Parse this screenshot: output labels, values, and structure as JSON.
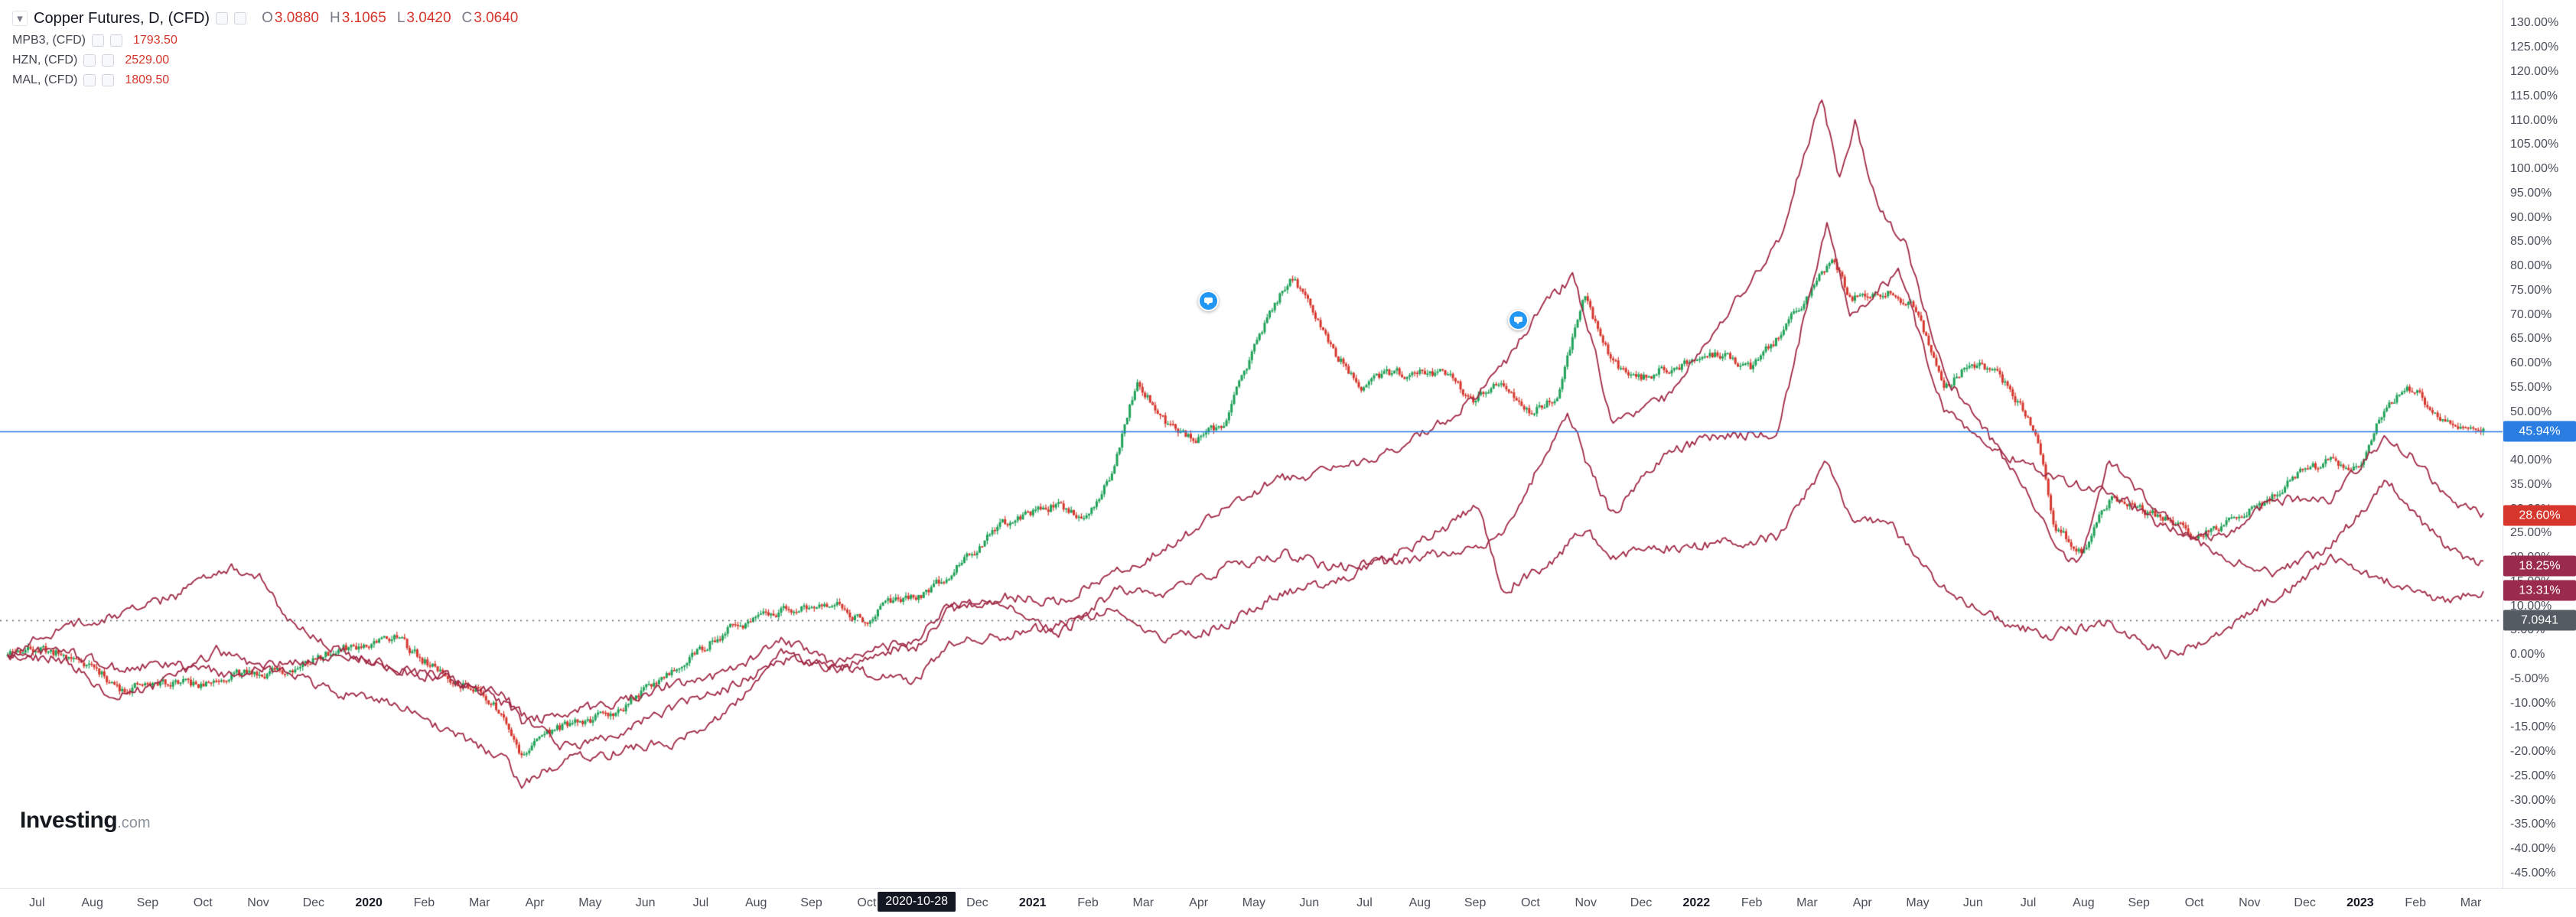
{
  "branding": {
    "name": "Investing",
    "suffix": ".com"
  },
  "legend": {
    "collapse_icon": "▾",
    "title": "Copper Futures, D, (CFD)",
    "ohlc": {
      "o_label": "O",
      "o": "3.0880",
      "h_label": "H",
      "h": "3.1065",
      "l_label": "L",
      "l": "3.0420",
      "c_label": "C",
      "c": "3.0640"
    },
    "compares": [
      {
        "symbol": "MPB3, (CFD)",
        "value": "1793.50"
      },
      {
        "symbol": "HZN, (CFD)",
        "value": "2529.00"
      },
      {
        "symbol": "MAL, (CFD)",
        "value": "1809.50"
      }
    ]
  },
  "crosshair_date": "2020-10-28",
  "price_tags": [
    {
      "label": "45.94%",
      "value": 45.94,
      "bg": "#2a7de1"
    },
    {
      "label": "28.60%",
      "value": 28.6,
      "bg": "#d6362c"
    },
    {
      "label": "18.25%",
      "value": 18.25,
      "bg": "#9a2b4c"
    },
    {
      "label": "13.31%",
      "value": 13.31,
      "bg": "#9a2b4c"
    },
    {
      "label": "7.0941",
      "value": 7.0941,
      "bg": "#555b63"
    }
  ],
  "chart_data": {
    "type": "candlestick+line",
    "title": "Copper Futures, D, (CFD) with MPB3, HZN, MAL overlays (percent change scale)",
    "x_unit": "months since 2019-06-15",
    "y_axis": {
      "min": -48,
      "max": 134.8,
      "tick_step": 5,
      "unit": "%"
    },
    "x_axis": {
      "epoch": "2019-06-15",
      "start": "2019-07",
      "end": "2023-03",
      "month_names": [
        "Jan",
        "Feb",
        "Mar",
        "Apr",
        "May",
        "Jun",
        "Jul",
        "Aug",
        "Sep",
        "Oct",
        "Nov",
        "Dec"
      ]
    },
    "colors": {
      "up": "#1fa158",
      "down": "#d6362c",
      "compare": "#a02945",
      "current_line": "#2a7de1",
      "level_line": "#5c6066"
    },
    "levels": [
      {
        "value": 45.94,
        "style": "solid"
      },
      {
        "value": 7.0941,
        "style": "dotted"
      }
    ],
    "markers": [
      {
        "t": 21.7,
        "value": 73
      },
      {
        "t": 27.3,
        "value": 69
      }
    ],
    "series": [
      {
        "name": "Copper Futures (CFD)",
        "type": "candlestick",
        "last_label": "45.94%",
        "points": [
          [
            0,
            0
          ],
          [
            0.5,
            1.5
          ],
          [
            1,
            0
          ],
          [
            1.5,
            -2
          ],
          [
            2,
            -7
          ],
          [
            3,
            -5.5
          ],
          [
            3.5,
            -6.5
          ],
          [
            4,
            -4
          ],
          [
            5,
            -3.5
          ],
          [
            5.5,
            -1
          ],
          [
            6,
            1
          ],
          [
            7,
            4
          ],
          [
            7.5,
            -1
          ],
          [
            8,
            -5
          ],
          [
            8.5,
            -7
          ],
          [
            9,
            -13
          ],
          [
            9.3,
            -21
          ],
          [
            9.7,
            -16
          ],
          [
            10,
            -15
          ],
          [
            11,
            -12
          ],
          [
            12,
            -3
          ],
          [
            13,
            5
          ],
          [
            14,
            9
          ],
          [
            15,
            10
          ],
          [
            15.5,
            7
          ],
          [
            16,
            11
          ],
          [
            16.4,
            11.6
          ],
          [
            17,
            16
          ],
          [
            18,
            27
          ],
          [
            19,
            31
          ],
          [
            19.5,
            28
          ],
          [
            20,
            38
          ],
          [
            20.4,
            56
          ],
          [
            21,
            47
          ],
          [
            21.5,
            44
          ],
          [
            22,
            48
          ],
          [
            22.8,
            70
          ],
          [
            23.2,
            78
          ],
          [
            23.5,
            73
          ],
          [
            24,
            62
          ],
          [
            24.5,
            55
          ],
          [
            25,
            58
          ],
          [
            26,
            58
          ],
          [
            26.5,
            52
          ],
          [
            27,
            57
          ],
          [
            27.5,
            50
          ],
          [
            28,
            53
          ],
          [
            28.5,
            74
          ],
          [
            29,
            60
          ],
          [
            29.5,
            57
          ],
          [
            30,
            59
          ],
          [
            31,
            62
          ],
          [
            31.5,
            59
          ],
          [
            32,
            65
          ],
          [
            33,
            82
          ],
          [
            33.3,
            73
          ],
          [
            34,
            75
          ],
          [
            34.5,
            71
          ],
          [
            35,
            55
          ],
          [
            35.5,
            60
          ],
          [
            36,
            58
          ],
          [
            36.7,
            45
          ],
          [
            37,
            27
          ],
          [
            37.5,
            21
          ],
          [
            38,
            32
          ],
          [
            39,
            28
          ],
          [
            39.5,
            25
          ],
          [
            40,
            26
          ],
          [
            41,
            33
          ],
          [
            41.5,
            38
          ],
          [
            42,
            40
          ],
          [
            42.5,
            38
          ],
          [
            43,
            52
          ],
          [
            43.5,
            55
          ],
          [
            44,
            48
          ],
          [
            44.8,
            45.94
          ]
        ]
      },
      {
        "name": "MAL, (CFD)",
        "type": "line",
        "last_label": "28.60%",
        "points": [
          [
            0,
            0
          ],
          [
            1,
            1
          ],
          [
            2,
            -3
          ],
          [
            3,
            -2
          ],
          [
            4,
            -4
          ],
          [
            5,
            -2
          ],
          [
            6,
            0
          ],
          [
            7,
            -2.5
          ],
          [
            8,
            -5
          ],
          [
            9,
            -10
          ],
          [
            9.5,
            -14
          ],
          [
            10,
            -18.5
          ],
          [
            10.3,
            -19
          ],
          [
            11,
            -16
          ],
          [
            12,
            -11
          ],
          [
            13,
            -7
          ],
          [
            14,
            -1
          ],
          [
            15,
            -2
          ],
          [
            16,
            2
          ],
          [
            16.4,
            1
          ],
          [
            17,
            9
          ],
          [
            18,
            12
          ],
          [
            19,
            11
          ],
          [
            20,
            17
          ],
          [
            21,
            22
          ],
          [
            22,
            31
          ],
          [
            23,
            36
          ],
          [
            24,
            38
          ],
          [
            25,
            42
          ],
          [
            26,
            48
          ],
          [
            27,
            59
          ],
          [
            27.8,
            72
          ],
          [
            28.3,
            78
          ],
          [
            28.7,
            62
          ],
          [
            29,
            48
          ],
          [
            30,
            53
          ],
          [
            31,
            69
          ],
          [
            32,
            85
          ],
          [
            32.8,
            115
          ],
          [
            33.1,
            98
          ],
          [
            33.4,
            110
          ],
          [
            33.8,
            92
          ],
          [
            34.3,
            85
          ],
          [
            35,
            58
          ],
          [
            36,
            42
          ],
          [
            37,
            36
          ],
          [
            38,
            34
          ],
          [
            39,
            26
          ],
          [
            40,
            24
          ],
          [
            41,
            32
          ],
          [
            42,
            32
          ],
          [
            43,
            45
          ],
          [
            43.6,
            40
          ],
          [
            44,
            33
          ],
          [
            44.8,
            28.6
          ]
        ]
      },
      {
        "name": "HZN, (CFD)",
        "type": "line",
        "last_label": "18.25%",
        "points": [
          [
            0,
            0
          ],
          [
            1,
            -1
          ],
          [
            2,
            -9
          ],
          [
            3,
            -5
          ],
          [
            3.8,
            1
          ],
          [
            4.5,
            -2
          ],
          [
            5,
            -4
          ],
          [
            6,
            -8
          ],
          [
            7,
            -10
          ],
          [
            8,
            -16
          ],
          [
            9,
            -22
          ],
          [
            9.3,
            -27
          ],
          [
            10,
            -22
          ],
          [
            11,
            -20
          ],
          [
            12,
            -18
          ],
          [
            13,
            -12
          ],
          [
            14,
            0
          ],
          [
            15,
            -3
          ],
          [
            16,
            1
          ],
          [
            16.4,
            2
          ],
          [
            17,
            11
          ],
          [
            18,
            11
          ],
          [
            19,
            4
          ],
          [
            20,
            13
          ],
          [
            21,
            13
          ],
          [
            22,
            18
          ],
          [
            23,
            21
          ],
          [
            24,
            18
          ],
          [
            25,
            19
          ],
          [
            26,
            21
          ],
          [
            27,
            24
          ],
          [
            28.2,
            50
          ],
          [
            28.6,
            38
          ],
          [
            29,
            29
          ],
          [
            30,
            42
          ],
          [
            31,
            45
          ],
          [
            32,
            46
          ],
          [
            32.9,
            90
          ],
          [
            33.3,
            70
          ],
          [
            34.2,
            79
          ],
          [
            35,
            50
          ],
          [
            36,
            42
          ],
          [
            37,
            24
          ],
          [
            37.4,
            18
          ],
          [
            38,
            40
          ],
          [
            39,
            28
          ],
          [
            40,
            20
          ],
          [
            41,
            17
          ],
          [
            42,
            22
          ],
          [
            43,
            36
          ],
          [
            44,
            23
          ],
          [
            44.8,
            18.25
          ]
        ]
      },
      {
        "name": "MPB3, (CFD)",
        "type": "line",
        "last_label": "13.31%",
        "points": [
          [
            0,
            0
          ],
          [
            1,
            6
          ],
          [
            2,
            8
          ],
          [
            3,
            12
          ],
          [
            4,
            18
          ],
          [
            4.6,
            16
          ],
          [
            5,
            8
          ],
          [
            6,
            1
          ],
          [
            7,
            -3
          ],
          [
            8,
            -5
          ],
          [
            9,
            -8
          ],
          [
            9.3,
            -14
          ],
          [
            10,
            -12
          ],
          [
            11,
            -10
          ],
          [
            12,
            -6
          ],
          [
            13,
            -4
          ],
          [
            14,
            3
          ],
          [
            15,
            -2
          ],
          [
            16,
            -5
          ],
          [
            16.4,
            -5.4
          ],
          [
            17,
            2
          ],
          [
            18,
            4
          ],
          [
            19,
            6
          ],
          [
            20,
            10
          ],
          [
            21,
            3
          ],
          [
            22,
            6
          ],
          [
            23,
            13
          ],
          [
            24,
            15
          ],
          [
            25,
            20
          ],
          [
            26,
            26
          ],
          [
            26.6,
            31
          ],
          [
            27,
            13
          ],
          [
            28,
            20
          ],
          [
            28.5,
            26
          ],
          [
            29,
            20
          ],
          [
            30,
            22
          ],
          [
            31,
            23
          ],
          [
            32,
            24
          ],
          [
            32.9,
            40
          ],
          [
            33.3,
            28
          ],
          [
            34,
            27
          ],
          [
            35,
            14
          ],
          [
            36,
            7
          ],
          [
            37,
            4
          ],
          [
            38,
            7
          ],
          [
            39,
            0
          ],
          [
            40,
            4
          ],
          [
            41,
            12
          ],
          [
            42,
            20
          ],
          [
            43,
            15
          ],
          [
            44,
            11
          ],
          [
            44.8,
            13.31
          ]
        ]
      }
    ]
  }
}
